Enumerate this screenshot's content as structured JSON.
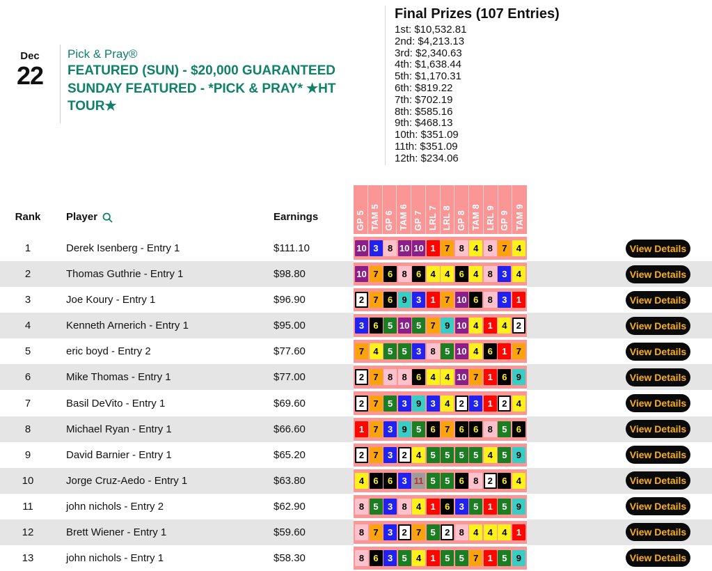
{
  "header": {
    "date_month": "Dec",
    "date_day": "22",
    "brand": "Pick & Pray®",
    "title": "FEATURED (SUN) - $20,000 GUARANTEED SUNDAY FEATURED - *PICK & PRAY* ★HT TOUR★",
    "accent_color": "#0E8167"
  },
  "prizes": {
    "title": "Final Prizes (107 Entries)",
    "items": [
      "1st: $10,532.81",
      "2nd: $4,213.13",
      "3rd: $2,340.63",
      "4th: $1,638.44",
      "5th: $1,170.31",
      "6th: $819.22",
      "7th: $702.19",
      "8th: $585.16",
      "9th: $468.13",
      "10th: $351.09",
      "11th: $351.09",
      "12th: $234.06"
    ]
  },
  "table": {
    "columns": {
      "rank": "Rank",
      "player": "Player",
      "earnings": "Earnings"
    },
    "search_icon": "search-icon",
    "tracks": [
      "GP 5",
      "TAM 5",
      "GP 6",
      "TAM 6",
      "GP 7",
      "LRL 7",
      "LRL 8",
      "GP 8",
      "TAM 8",
      "LRL 9",
      "GP 9",
      "TAM 9"
    ],
    "track_header_bg": "#FA9696",
    "view_details_label": "View Details",
    "button_bg": "#0A0A0A",
    "button_fg": "#F9B015",
    "stripe_bg": "#E5E5E5",
    "saddle_cloth_colors": {
      "1": {
        "bg": "#FE0600",
        "fg": "#FFFFFF"
      },
      "2": {
        "bg": "#FFFFFF",
        "fg": "#000000",
        "border": "#000000"
      },
      "3": {
        "bg": "#2222F0",
        "fg": "#FFFFFF"
      },
      "4": {
        "bg": "#FFF11C",
        "fg": "#000000"
      },
      "5": {
        "bg": "#1B7E23",
        "fg": "#FFFFFF"
      },
      "6": {
        "bg": "#000000",
        "fg": "#FFF11C"
      },
      "7": {
        "bg": "#FBA30C",
        "fg": "#000000"
      },
      "8": {
        "bg": "#FFC2CD",
        "fg": "#000000"
      },
      "9": {
        "bg": "#38CDC5",
        "fg": "#000000"
      },
      "10": {
        "bg": "#8A1F8A",
        "fg": "#FFFFFF"
      },
      "11": {
        "bg": "#9D9D9D",
        "fg": "#C42B25"
      }
    },
    "rows": [
      {
        "rank": "1",
        "player": "Derek Isenberg - Entry 1",
        "earnings": "$111.10",
        "picks": [
          10,
          3,
          8,
          10,
          10,
          1,
          7,
          8,
          4,
          8,
          7,
          4
        ]
      },
      {
        "rank": "2",
        "player": "Thomas Guthrie - Entry 1",
        "earnings": "$98.80",
        "picks": [
          10,
          7,
          6,
          8,
          6,
          4,
          4,
          6,
          4,
          8,
          3,
          4
        ]
      },
      {
        "rank": "3",
        "player": "Joe Koury - Entry 1",
        "earnings": "$96.90",
        "picks": [
          2,
          7,
          6,
          9,
          3,
          1,
          7,
          10,
          6,
          8,
          3,
          1
        ]
      },
      {
        "rank": "4",
        "player": "Kenneth Arnerich - Entry 1",
        "earnings": "$95.00",
        "picks": [
          3,
          6,
          5,
          10,
          5,
          7,
          9,
          10,
          4,
          1,
          4,
          2
        ]
      },
      {
        "rank": "5",
        "player": "eric boyd - Entry 2",
        "earnings": "$77.60",
        "picks": [
          7,
          4,
          5,
          5,
          3,
          8,
          5,
          10,
          4,
          6,
          1,
          7
        ]
      },
      {
        "rank": "6",
        "player": "Mike Thomas - Entry 1",
        "earnings": "$77.00",
        "picks": [
          2,
          7,
          8,
          8,
          6,
          4,
          4,
          10,
          7,
          1,
          6,
          9
        ]
      },
      {
        "rank": "7",
        "player": "Basil DeVito - Entry 1",
        "earnings": "$69.60",
        "picks": [
          2,
          7,
          5,
          3,
          9,
          3,
          4,
          2,
          3,
          1,
          2,
          4
        ]
      },
      {
        "rank": "8",
        "player": "Michael Ryan - Entry 1",
        "earnings": "$66.60",
        "picks": [
          1,
          7,
          3,
          9,
          5,
          6,
          7,
          6,
          6,
          8,
          5,
          6
        ]
      },
      {
        "rank": "9",
        "player": "David Barnier - Entry 1",
        "earnings": "$65.20",
        "picks": [
          2,
          7,
          3,
          2,
          4,
          5,
          5,
          5,
          5,
          4,
          5,
          9
        ]
      },
      {
        "rank": "10",
        "player": "Jorge Cruz-Aedo - Entry 1",
        "earnings": "$63.80",
        "picks": [
          4,
          6,
          6,
          3,
          11,
          5,
          5,
          6,
          8,
          2,
          6,
          4
        ]
      },
      {
        "rank": "11",
        "player": "john nichols - Entry 2",
        "earnings": "$62.90",
        "picks": [
          8,
          5,
          3,
          8,
          4,
          1,
          6,
          3,
          5,
          1,
          5,
          9
        ]
      },
      {
        "rank": "12",
        "player": "Brett Wiener - Entry 1",
        "earnings": "$59.60",
        "picks": [
          8,
          7,
          3,
          2,
          7,
          5,
          2,
          8,
          4,
          4,
          4,
          1
        ]
      },
      {
        "rank": "13",
        "player": "john nichols - Entry 1",
        "earnings": "$58.30",
        "picks": [
          8,
          6,
          3,
          5,
          4,
          1,
          5,
          5,
          7,
          1,
          5,
          9
        ]
      }
    ]
  }
}
